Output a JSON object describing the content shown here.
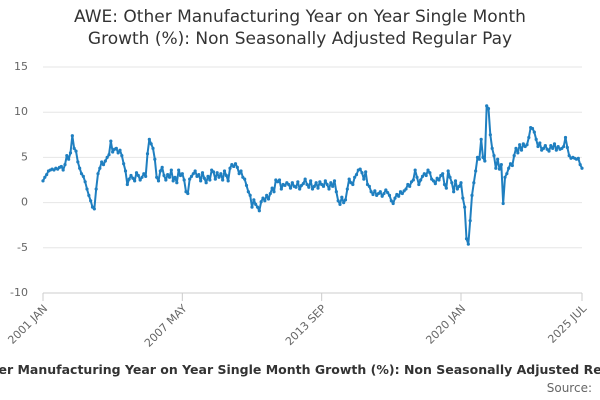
{
  "chart_data": {
    "type": "line",
    "title": "AWE: Other Manufacturing Year on Year Single Month Growth (%): Non Seasonally Adjusted Regular Pay",
    "source_label": "Source:",
    "x": [
      "2001 JAN",
      "2001 FEB",
      "2001 MAR",
      "2001 APR",
      "2001 MAY",
      "2001 JUN",
      "2001 JUL",
      "2001 AUG",
      "2001 SEP",
      "2001 OCT",
      "2001 NOV",
      "2001 DEC",
      "2002 JAN",
      "2002 FEB",
      "2002 MAR",
      "2002 APR",
      "2002 MAY",
      "2002 JUN",
      "2002 JUL",
      "2002 AUG",
      "2002 SEP",
      "2002 OCT",
      "2002 NOV",
      "2002 DEC",
      "2003 JAN",
      "2003 FEB",
      "2003 MAR",
      "2003 APR",
      "2003 MAY",
      "2003 JUN",
      "2003 JUL",
      "2003 AUG",
      "2003 SEP",
      "2003 OCT",
      "2003 NOV",
      "2003 DEC",
      "2004 JAN",
      "2004 FEB",
      "2004 MAR",
      "2004 APR",
      "2004 MAY",
      "2004 JUN",
      "2004 JUL",
      "2004 AUG",
      "2004 SEP",
      "2004 OCT",
      "2004 NOV",
      "2004 DEC",
      "2005 JAN",
      "2005 FEB",
      "2005 MAR",
      "2005 APR",
      "2005 MAY",
      "2005 JUN",
      "2005 JUL",
      "2005 AUG",
      "2005 SEP",
      "2005 OCT",
      "2005 NOV",
      "2005 DEC",
      "2006 JAN",
      "2006 FEB",
      "2006 MAR",
      "2006 APR",
      "2006 MAY",
      "2006 JUN",
      "2006 JUL",
      "2006 AUG",
      "2006 SEP",
      "2006 OCT",
      "2006 NOV",
      "2006 DEC",
      "2007 JAN",
      "2007 FEB",
      "2007 MAR",
      "2007 APR",
      "2007 MAY",
      "2007 JUN",
      "2007 JUL",
      "2007 AUG",
      "2007 SEP",
      "2007 OCT",
      "2007 NOV",
      "2007 DEC",
      "2008 JAN",
      "2008 FEB",
      "2008 MAR",
      "2008 APR",
      "2008 MAY",
      "2008 JUN",
      "2008 JUL",
      "2008 AUG",
      "2008 SEP",
      "2008 OCT",
      "2008 NOV",
      "2008 DEC",
      "2009 JAN",
      "2009 FEB",
      "2009 MAR",
      "2009 APR",
      "2009 MAY",
      "2009 JUN",
      "2009 JUL",
      "2009 AUG",
      "2009 SEP",
      "2009 OCT",
      "2009 NOV",
      "2009 DEC",
      "2010 JAN",
      "2010 FEB",
      "2010 MAR",
      "2010 APR",
      "2010 MAY",
      "2010 JUN",
      "2010 JUL",
      "2010 AUG",
      "2010 SEP",
      "2010 OCT",
      "2010 NOV",
      "2010 DEC",
      "2011 JAN",
      "2011 FEB",
      "2011 MAR",
      "2011 APR",
      "2011 MAY",
      "2011 JUN",
      "2011 JUL",
      "2011 AUG",
      "2011 SEP",
      "2011 OCT",
      "2011 NOV",
      "2011 DEC",
      "2012 JAN",
      "2012 FEB",
      "2012 MAR",
      "2012 APR",
      "2012 MAY",
      "2012 JUN",
      "2012 JUL",
      "2012 AUG",
      "2012 SEP",
      "2012 OCT",
      "2012 NOV",
      "2012 DEC",
      "2013 JAN",
      "2013 FEB",
      "2013 MAR",
      "2013 APR",
      "2013 MAY",
      "2013 JUN",
      "2013 JUL",
      "2013 AUG",
      "2013 SEP",
      "2013 OCT",
      "2013 NOV",
      "2013 DEC",
      "2014 JAN",
      "2014 FEB",
      "2014 MAR",
      "2014 APR",
      "2014 MAY",
      "2014 JUN",
      "2014 JUL",
      "2014 AUG",
      "2014 SEP",
      "2014 OCT",
      "2014 NOV",
      "2014 DEC",
      "2015 JAN",
      "2015 FEB",
      "2015 MAR",
      "2015 APR",
      "2015 MAY",
      "2015 JUN",
      "2015 JUL",
      "2015 AUG",
      "2015 SEP",
      "2015 OCT",
      "2015 NOV",
      "2015 DEC",
      "2016 JAN",
      "2016 FEB",
      "2016 MAR",
      "2016 APR",
      "2016 MAY",
      "2016 JUN",
      "2016 JUL",
      "2016 AUG",
      "2016 SEP",
      "2016 OCT",
      "2016 NOV",
      "2016 DEC",
      "2017 JAN",
      "2017 FEB",
      "2017 MAR",
      "2017 APR",
      "2017 MAY",
      "2017 JUN",
      "2017 JUL",
      "2017 AUG",
      "2017 SEP",
      "2017 OCT",
      "2017 NOV",
      "2017 DEC",
      "2018 JAN",
      "2018 FEB",
      "2018 MAR",
      "2018 APR",
      "2018 MAY",
      "2018 JUN",
      "2018 JUL",
      "2018 AUG",
      "2018 SEP",
      "2018 OCT",
      "2018 NOV",
      "2018 DEC",
      "2019 JAN",
      "2019 FEB",
      "2019 MAR",
      "2019 APR",
      "2019 MAY",
      "2019 JUN",
      "2019 JUL",
      "2019 AUG",
      "2019 SEP",
      "2019 OCT",
      "2019 NOV",
      "2019 DEC",
      "2020 JAN",
      "2020 FEB",
      "2020 MAR",
      "2020 APR",
      "2020 MAY",
      "2020 JUN",
      "2020 JUL",
      "2020 AUG",
      "2020 SEP",
      "2020 OCT",
      "2020 NOV",
      "2020 DEC",
      "2021 JAN",
      "2021 FEB",
      "2021 MAR",
      "2021 APR",
      "2021 MAY",
      "2021 JUN",
      "2021 JUL",
      "2021 AUG",
      "2021 SEP",
      "2021 OCT",
      "2021 NOV",
      "2021 DEC",
      "2022 JAN",
      "2022 FEB",
      "2022 MAR",
      "2022 APR",
      "2022 MAY",
      "2022 JUN",
      "2022 JUL",
      "2022 AUG",
      "2022 SEP",
      "2022 OCT",
      "2022 NOV",
      "2022 DEC",
      "2023 JAN",
      "2023 FEB",
      "2023 MAR",
      "2023 APR",
      "2023 MAY",
      "2023 JUN",
      "2023 JUL",
      "2023 AUG",
      "2023 SEP",
      "2023 OCT",
      "2023 NOV",
      "2023 DEC",
      "2024 JAN",
      "2024 FEB",
      "2024 MAR",
      "2024 APR",
      "2024 MAY",
      "2024 JUN",
      "2024 JUL",
      "2024 AUG",
      "2024 SEP",
      "2024 OCT",
      "2024 NOV",
      "2024 DEC",
      "2025 JAN",
      "2025 FEB",
      "2025 MAR",
      "2025 APR",
      "2025 MAY",
      "2025 JUN",
      "2025 JUL"
    ],
    "xticks": [
      "2001 JAN",
      "2007 MAY",
      "2013 SEP",
      "2020 JAN",
      "2025 JUL"
    ],
    "series": [
      {
        "name": "AWE: Other Manufacturing Year on Year Single Month Growth (%): Non Seasonally Adjusted Regular Pay",
        "color": "#1f7fc0",
        "values": [
          2.4,
          2.8,
          3.1,
          3.5,
          3.6,
          3.7,
          3.6,
          3.8,
          3.7,
          3.9,
          4.0,
          3.6,
          4.2,
          5.2,
          4.8,
          5.5,
          7.4,
          6.0,
          5.7,
          4.5,
          3.8,
          3.2,
          2.9,
          2.3,
          1.5,
          0.8,
          0.2,
          -0.5,
          -0.7,
          1.5,
          3.2,
          3.8,
          4.5,
          4.2,
          4.6,
          5.0,
          5.3,
          6.8,
          5.6,
          5.9,
          6.0,
          5.5,
          5.8,
          5.2,
          4.3,
          3.5,
          2.0,
          2.6,
          3.0,
          2.7,
          2.4,
          3.3,
          3.0,
          2.5,
          2.8,
          3.2,
          2.9,
          5.4,
          7.0,
          6.5,
          6.0,
          4.8,
          2.8,
          2.4,
          3.5,
          3.9,
          3.0,
          2.5,
          3.1,
          2.8,
          3.6,
          2.4,
          2.8,
          2.2,
          3.6,
          3.0,
          3.2,
          2.5,
          1.2,
          1.0,
          2.6,
          2.9,
          3.2,
          3.5,
          2.9,
          3.1,
          2.4,
          3.3,
          2.7,
          2.2,
          2.9,
          2.5,
          3.6,
          3.4,
          2.6,
          3.3,
          2.8,
          3.2,
          2.5,
          3.5,
          3.0,
          2.4,
          3.8,
          4.2,
          4.0,
          4.3,
          3.9,
          3.2,
          3.5,
          2.8,
          2.6,
          1.9,
          1.2,
          0.8,
          -0.5,
          0.3,
          -0.2,
          -0.5,
          -0.9,
          0.1,
          0.5,
          0.2,
          0.8,
          0.4,
          1.0,
          1.6,
          1.2,
          2.5,
          2.3,
          2.5,
          1.5,
          2.0,
          1.9,
          2.2,
          2.0,
          1.6,
          2.2,
          1.8,
          1.7,
          2.3,
          1.5,
          1.9,
          2.1,
          2.6,
          2.0,
          1.7,
          2.4,
          1.5,
          1.8,
          2.2,
          1.6,
          2.3,
          2.0,
          1.8,
          2.4,
          2.0,
          1.5,
          2.2,
          1.8,
          2.4,
          1.2,
          0.2,
          -0.2,
          0.6,
          0.0,
          0.3,
          1.5,
          2.6,
          2.2,
          2.0,
          2.8,
          3.1,
          3.6,
          3.7,
          3.3,
          2.6,
          3.4,
          2.0,
          1.8,
          1.2,
          0.9,
          1.3,
          0.8,
          1.0,
          1.2,
          0.7,
          1.0,
          1.4,
          1.1,
          0.8,
          0.2,
          -0.1,
          0.5,
          0.9,
          0.7,
          1.2,
          1.0,
          1.3,
          1.5,
          2.0,
          1.8,
          2.3,
          2.5,
          3.6,
          2.8,
          2.0,
          2.5,
          2.9,
          3.2,
          3.0,
          3.6,
          3.3,
          2.6,
          2.4,
          2.1,
          2.7,
          2.5,
          3.0,
          3.2,
          2.0,
          1.6,
          3.5,
          2.8,
          2.2,
          1.2,
          2.4,
          1.5,
          1.8,
          2.2,
          0.5,
          -0.5,
          -4.0,
          -4.6,
          -2.0,
          0.8,
          2.2,
          3.5,
          5.0,
          4.8,
          7.0,
          5.0,
          4.6,
          10.7,
          10.4,
          7.5,
          6.0,
          5.2,
          3.8,
          4.8,
          3.7,
          4.2,
          -0.1,
          2.8,
          3.2,
          3.8,
          4.3,
          4.1,
          5.2,
          6.0,
          5.5,
          6.4,
          5.8,
          6.5,
          6.2,
          6.4,
          7.2,
          8.3,
          8.2,
          7.8,
          7.0,
          6.2,
          6.6,
          5.8,
          6.0,
          6.3,
          5.9,
          5.7,
          6.3,
          6.0,
          6.5,
          5.8,
          6.2,
          5.9,
          6.0,
          6.2,
          7.2,
          6.1,
          5.2,
          4.9,
          5.0,
          4.9,
          4.8,
          4.9,
          4.2,
          3.8
        ]
      }
    ],
    "ylim": [
      -10,
      15
    ],
    "yticks": [
      -10,
      -5,
      0,
      5,
      10,
      15
    ],
    "grid": true
  }
}
